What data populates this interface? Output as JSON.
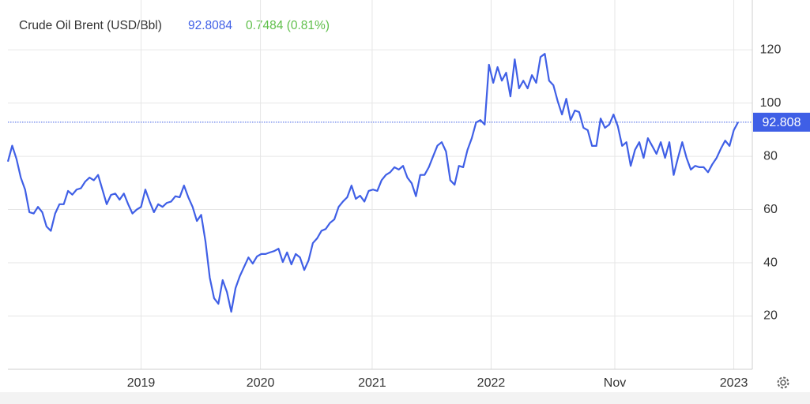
{
  "chart_data": {
    "type": "line",
    "title": "Crude Oil Brent (USD/Bbl)",
    "price": "92.8084",
    "change": "0.7484 (0.81%)",
    "last_label": 92.808,
    "grid": true,
    "ylim": [
      0,
      138.7
    ],
    "yticks": [
      20,
      40,
      60,
      80,
      100,
      120
    ],
    "xlim": [
      0,
      170
    ],
    "xticks": [
      {
        "value": 31,
        "label": "2019"
      },
      {
        "value": 58.8,
        "label": "2020"
      },
      {
        "value": 84.8,
        "label": "2021"
      },
      {
        "value": 112.5,
        "label": "2022"
      },
      {
        "value": 141.3,
        "label": "Nov"
      },
      {
        "value": 169,
        "label": "2023"
      }
    ],
    "series": [
      {
        "name": "Crude Oil Brent",
        "color": "#3f5fe6",
        "values": [
          78,
          84,
          79,
          72,
          67.5,
          59,
          58.5,
          61,
          59,
          53.6,
          52,
          58.5,
          62,
          62,
          67,
          65.6,
          67.5,
          68,
          70.5,
          72,
          71,
          73,
          67.5,
          62,
          65.5,
          66,
          63.7,
          66,
          62,
          58.5,
          60,
          61,
          67.5,
          63,
          59,
          62,
          61,
          62.5,
          63,
          65,
          64.6,
          69,
          64.6,
          61,
          55.7,
          58,
          48,
          34.4,
          26.7,
          24.6,
          33.5,
          29,
          21.6,
          30.5,
          35,
          38.5,
          42,
          39.7,
          42.4,
          43.3,
          43.3,
          43.9,
          44.4,
          45.3,
          40.3,
          43.9,
          39.4,
          43.3,
          42,
          37.3,
          40.9,
          47.4,
          49.2,
          52,
          52.7,
          55,
          56.3,
          61,
          63,
          64.6,
          69,
          64,
          65.2,
          63,
          67,
          67.5,
          67,
          71,
          73,
          74,
          75.9,
          75,
          76.4,
          72,
          69.9,
          65,
          73,
          73,
          75.9,
          80,
          84,
          85.3,
          81.8,
          71,
          69.3,
          76.4,
          75.9,
          82.4,
          86.8,
          92.7,
          93.6,
          91.9,
          114.4,
          107.6,
          113.5,
          108.4,
          111.4,
          102.5,
          116.4,
          105.5,
          108.4,
          105.5,
          110.5,
          107.6,
          117.3,
          118.5,
          108.4,
          106.7,
          100.7,
          95.7,
          101.6,
          93.6,
          97.2,
          96.6,
          90.7,
          89.8,
          83.9,
          83.9,
          94.2,
          90.7,
          91.9,
          95.7,
          91.3,
          83.9,
          85.3,
          76.4,
          82.4,
          85.3,
          79.4,
          86.8,
          83.9,
          80.9,
          85.3,
          79.4,
          85.3,
          73,
          79.4,
          85.3,
          79.4,
          75,
          76.4,
          75.9,
          75.9,
          74,
          77,
          79.4,
          82.9,
          85.9,
          83.9,
          89.8,
          92.808
        ]
      }
    ]
  }
}
